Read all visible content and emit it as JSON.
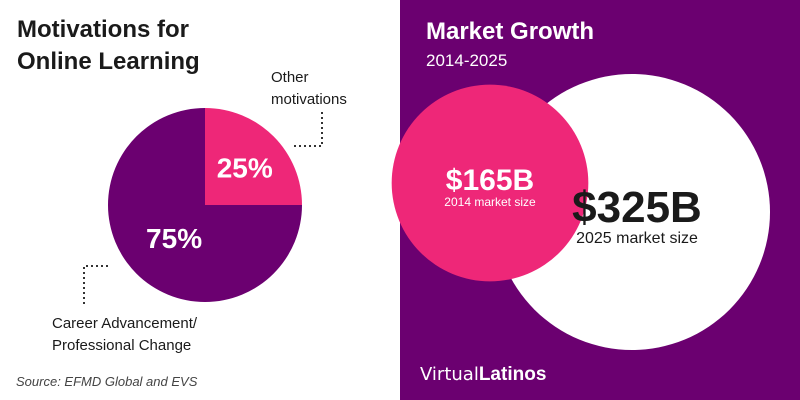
{
  "colors": {
    "purple": "#6b0070",
    "pink": "#ee2778",
    "white": "#ffffff",
    "text": "#1a1a1a"
  },
  "left": {
    "title_line1": "Motivations for",
    "title_line2": "Online Learning",
    "callout_other_line1": "Other",
    "callout_other_line2": "motivations",
    "callout_career_line1": "Career Advancement/",
    "callout_career_line2": "Professional Change",
    "source": "Source: EFMD Global and EVS"
  },
  "right": {
    "title": "Market Growth",
    "subtitle": "2014-2025",
    "brand_part1": "Virtual",
    "brand_part2": "Latinos"
  },
  "chart_data": [
    {
      "type": "pie",
      "title": "Motivations for Online Learning",
      "categories": [
        "Other motivations",
        "Career Advancement/ Professional Change"
      ],
      "values": [
        25,
        75
      ],
      "labels": [
        "25%",
        "75%"
      ],
      "colors": [
        "#ee2778",
        "#6b0070"
      ]
    },
    {
      "type": "bubble",
      "title": "Market Growth",
      "subtitle": "2014-2025",
      "categories": [
        "2014 market size",
        "2025 market size"
      ],
      "values": [
        165,
        325
      ],
      "labels": [
        "$165B",
        "$325B"
      ],
      "colors": [
        "#ee2778",
        "#ffffff"
      ]
    }
  ]
}
